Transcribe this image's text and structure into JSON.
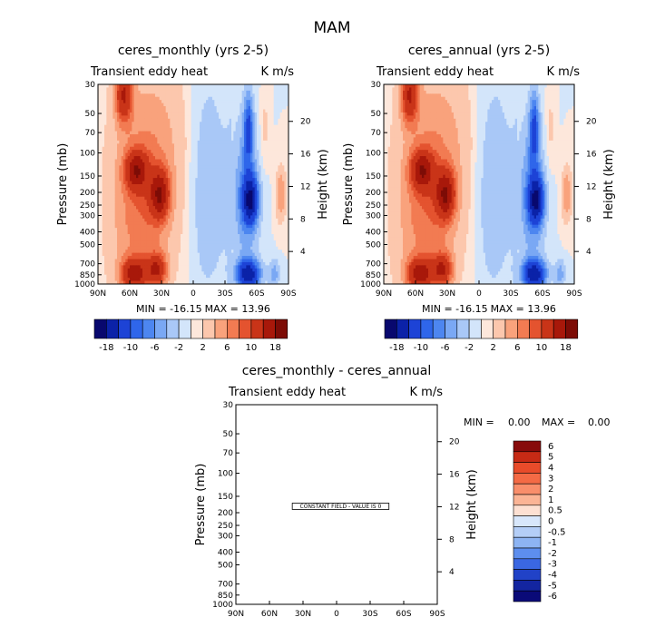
{
  "figure": {
    "title": "MAM"
  },
  "chart_data": [
    {
      "type": "heatmap",
      "title": "ceres_monthly (yrs 2-5)",
      "subtitle_left": "Transient eddy heat",
      "subtitle_right": "K m/s",
      "ylabel": "Pressure (mb)",
      "ylabel_right": "Height (km)",
      "x_ticks": [
        "90N",
        "60N",
        "30N",
        "0",
        "30S",
        "60S",
        "90S"
      ],
      "y_ticks": [
        "30",
        "50",
        "70",
        "100",
        "150",
        "200",
        "250",
        "300",
        "400",
        "500",
        "700",
        "850",
        "1000"
      ],
      "height_ticks": [
        "20",
        "16",
        "12",
        "8",
        "4"
      ],
      "min_label": "MIN = -16.15",
      "max_label": "MAX = 13.96",
      "colorbar_labels": [
        "-18",
        "-10",
        "-6",
        "-2",
        "2",
        "6",
        "10",
        "18"
      ]
    },
    {
      "type": "heatmap",
      "title": "ceres_annual (yrs 2-5)",
      "subtitle_left": "Transient eddy heat",
      "subtitle_right": "K m/s",
      "ylabel": "Pressure (mb)",
      "ylabel_right": "Height (km)",
      "x_ticks": [
        "90N",
        "60N",
        "30N",
        "0",
        "30S",
        "60S",
        "90S"
      ],
      "y_ticks": [
        "30",
        "50",
        "70",
        "100",
        "150",
        "200",
        "250",
        "300",
        "400",
        "500",
        "700",
        "850",
        "1000"
      ],
      "height_ticks": [
        "20",
        "16",
        "12",
        "8",
        "4"
      ],
      "min_label": "MIN = -16.15",
      "max_label": "MAX = 13.96",
      "colorbar_labels": [
        "-18",
        "-10",
        "-6",
        "-2",
        "2",
        "6",
        "10",
        "18"
      ]
    },
    {
      "type": "heatmap",
      "title": "ceres_monthly - ceres_annual",
      "subtitle_left": "Transient eddy heat",
      "subtitle_right": "K m/s",
      "ylabel": "Pressure (mb)",
      "ylabel_right": "Height (km)",
      "x_ticks": [
        "90N",
        "60N",
        "30N",
        "0",
        "30S",
        "60S",
        "90S"
      ],
      "y_ticks": [
        "30",
        "50",
        "70",
        "100",
        "150",
        "200",
        "250",
        "300",
        "400",
        "500",
        "700",
        "850",
        "1000"
      ],
      "height_ticks": [
        "20",
        "16",
        "12",
        "8",
        "4"
      ],
      "min_label": "MIN =",
      "min_value": "0.00",
      "max_label": "MAX =",
      "max_value": "0.00",
      "annotation": "CONSTANT FIELD - VALUE IS 0",
      "colorbar_labels": [
        "6",
        "5",
        "4",
        "3",
        "2",
        "1",
        "0.5",
        "0",
        "-0.5",
        "-1",
        "-2",
        "-3",
        "-4",
        "-5",
        "-6"
      ]
    }
  ],
  "colors": {
    "scale18": [
      "#08086e",
      "#0b22a8",
      "#1d43d6",
      "#2f66ea",
      "#4d86f0",
      "#7aa8f4",
      "#a9c8f7",
      "#d3e5fa",
      "#fde7db",
      "#fcc7ad",
      "#f9a27c",
      "#f27b52",
      "#e4532f",
      "#c93418",
      "#a8180a",
      "#7d0c06"
    ],
    "diff": [
      "#870b0b",
      "#c72a15",
      "#e84b2a",
      "#f46a45",
      "#f98e6b",
      "#fbb495",
      "#fde0d2",
      "#d8e7fb",
      "#b4cef7",
      "#8db4f3",
      "#5d8eee",
      "#3a67e2",
      "#2142c7",
      "#1325a0",
      "#0a0a78"
    ]
  }
}
